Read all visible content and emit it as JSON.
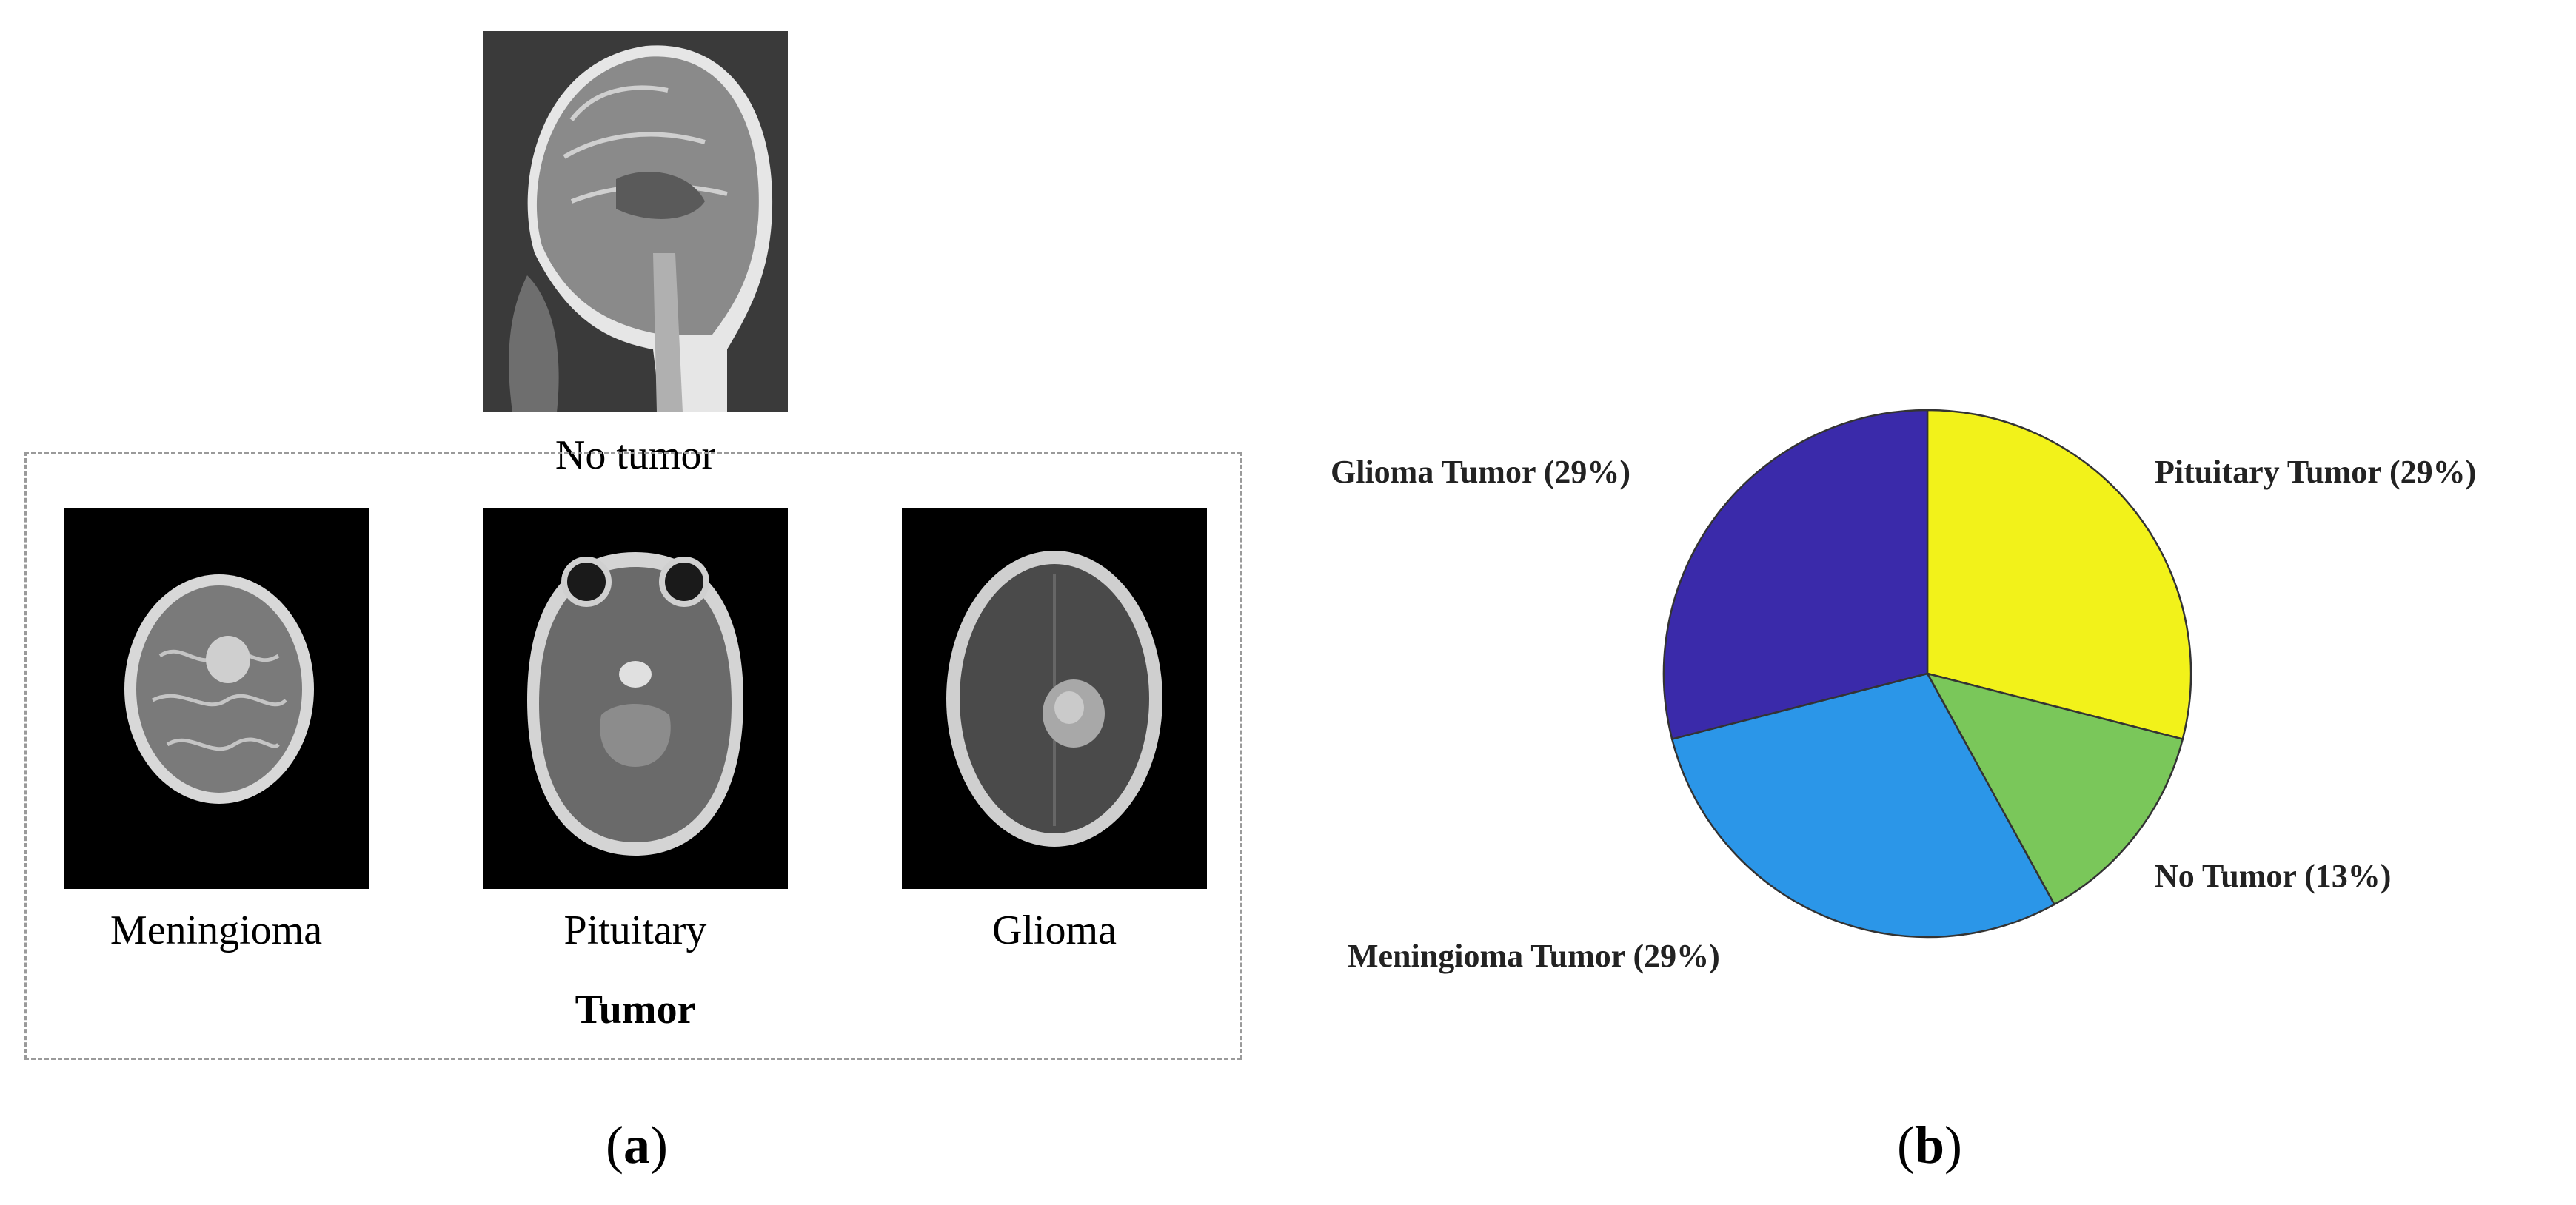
{
  "panel_a": {
    "top_image_caption": "No tumor",
    "tumor_images": [
      {
        "caption": "Meningioma"
      },
      {
        "caption": "Pituitary"
      },
      {
        "caption": "Glioma"
      }
    ],
    "group_label": "Tumor",
    "panel_label_open": "(",
    "panel_label_letter": "a",
    "panel_label_close": ")"
  },
  "panel_b": {
    "panel_label_open": "(",
    "panel_label_letter": "b",
    "panel_label_close": ")"
  },
  "chart_data": {
    "type": "pie",
    "title": "",
    "start_angle_deg": 0,
    "direction": "clockwise",
    "slices": [
      {
        "label": "Pituitary Tumor (29%)",
        "value": 29,
        "color": "#f2f21a"
      },
      {
        "label": "No Tumor (13%)",
        "value": 13,
        "color": "#7ac75a"
      },
      {
        "label": "Meningioma Tumor (29%)",
        "value": 29,
        "color": "#2b96e8"
      },
      {
        "label": "Glioma Tumor (29%)",
        "value": 29,
        "color": "#3a2aaa"
      }
    ]
  }
}
